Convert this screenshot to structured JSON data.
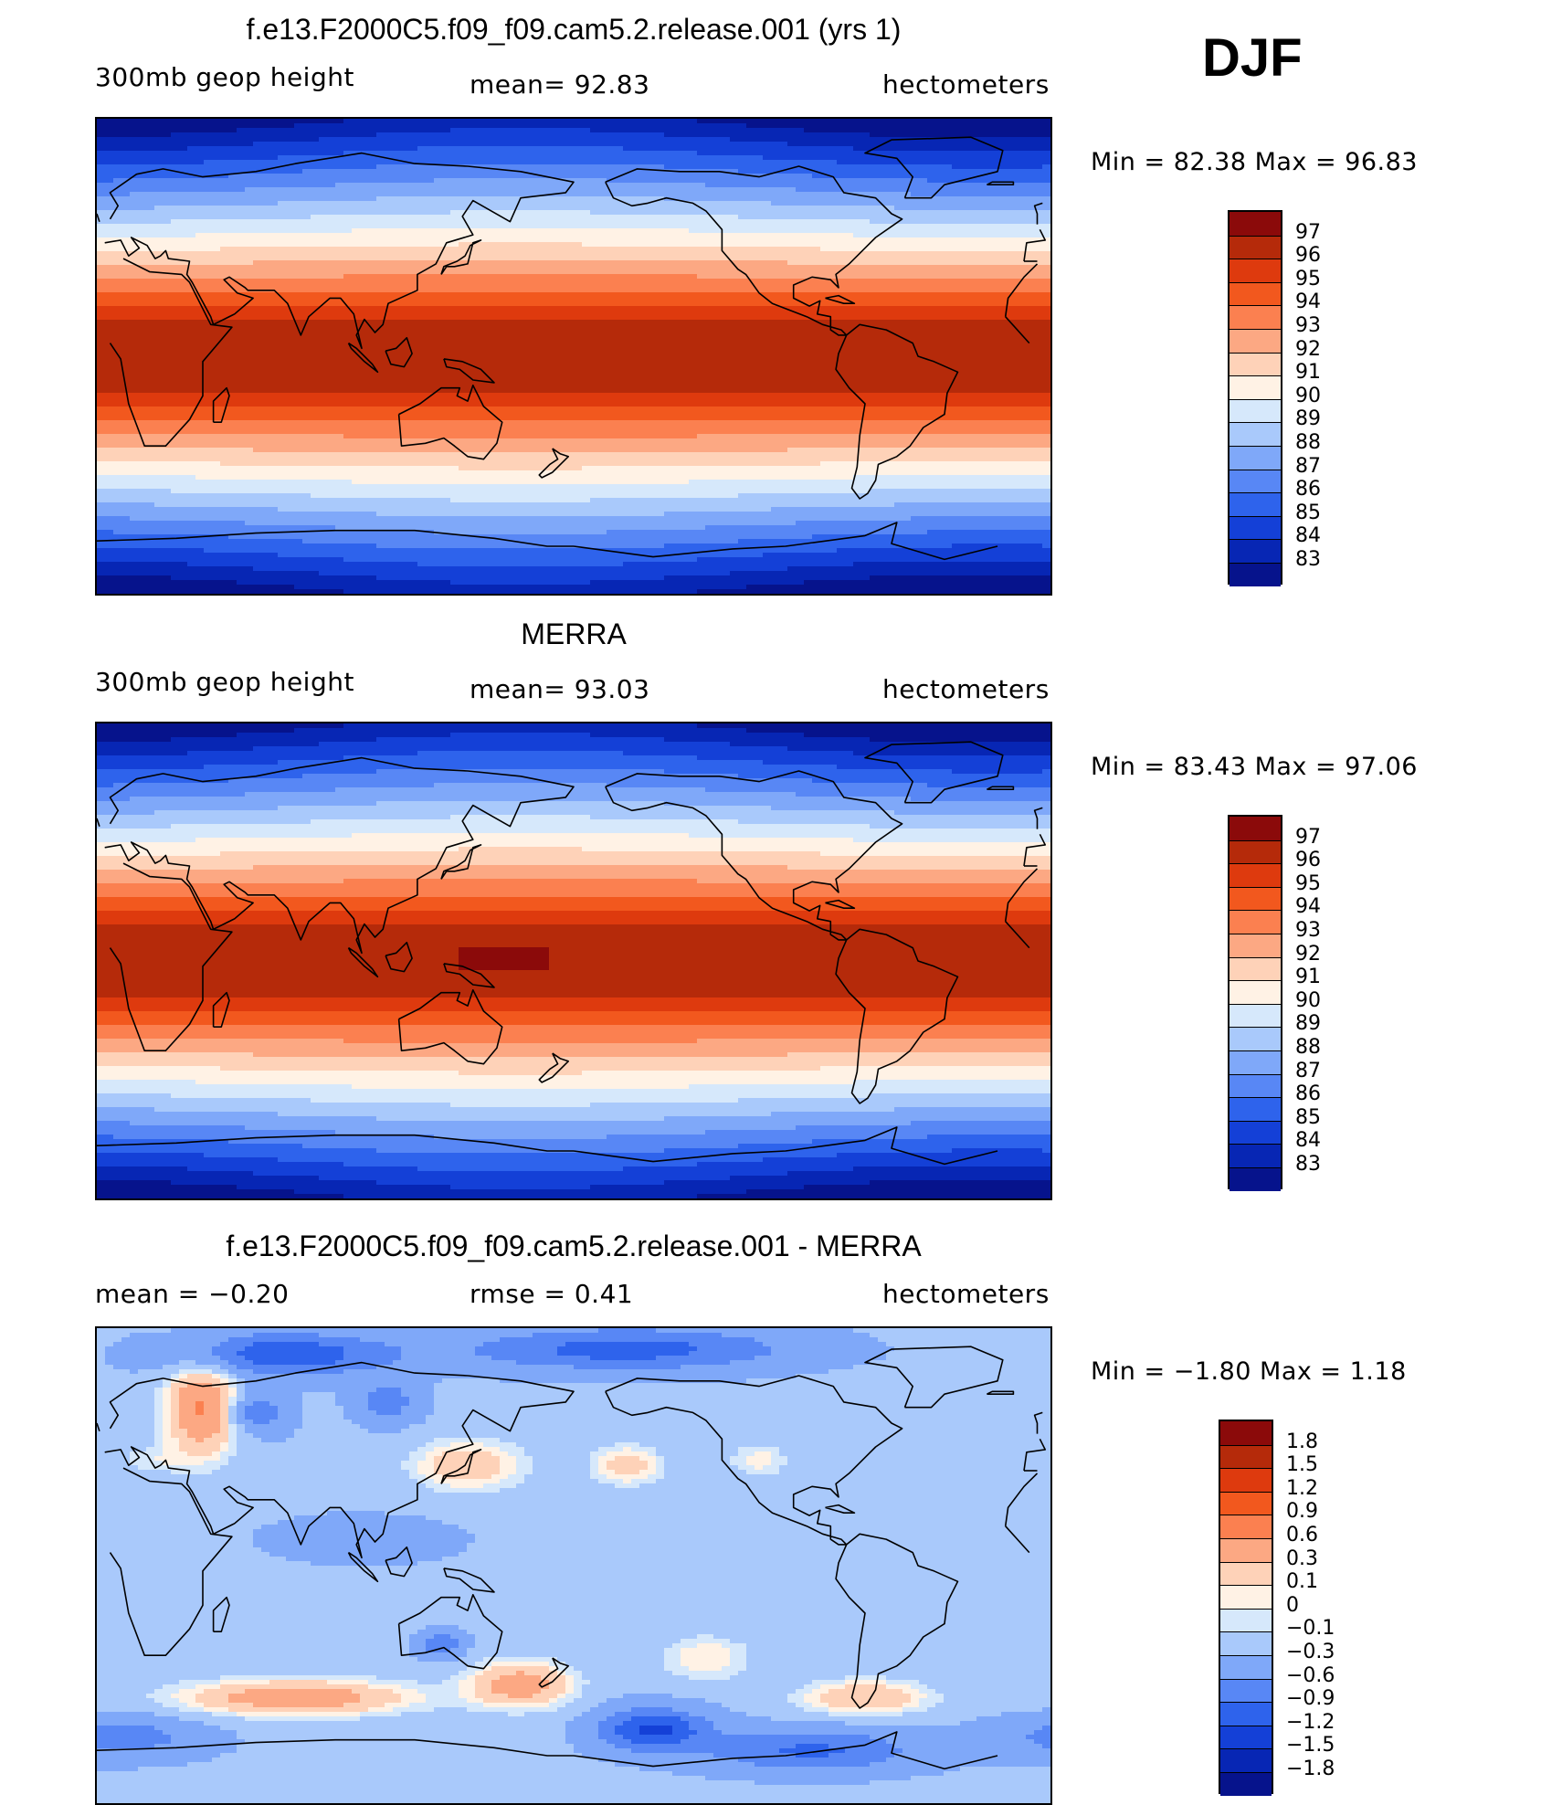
{
  "season": "DJF",
  "panels": [
    {
      "title": "f.e13.F2000C5.f09_f09.cam5.2.release.001 (yrs 1)",
      "left_label": "300mb  geop  height",
      "center_label": "mean=   92.83",
      "right_label": "hectometers",
      "minmax": "Min  =    82.38  Max  =    96.83",
      "colorbar": {
        "labels": [
          "97",
          "96",
          "95",
          "94",
          "93",
          "92",
          "91",
          "90",
          "89",
          "88",
          "87",
          "86",
          "85",
          "84",
          "83"
        ],
        "colors": [
          "#8b0a0a",
          "#b52a0a",
          "#de3a0e",
          "#f2581e",
          "#fb8050",
          "#fca883",
          "#fed2b8",
          "#fff2e5",
          "#d6e8fb",
          "#a9c9fb",
          "#7fa8f9",
          "#5887f5",
          "#2e63ec",
          "#1440d7",
          "#0726b4",
          "#06138c"
        ]
      },
      "field": "mean"
    },
    {
      "title": "MERRA",
      "left_label": "300mb  geop  height",
      "center_label": "mean=   93.03",
      "right_label": "hectometers",
      "minmax": "Min  =    83.43  Max  =    97.06",
      "colorbar": {
        "labels": [
          "97",
          "96",
          "95",
          "94",
          "93",
          "92",
          "91",
          "90",
          "89",
          "88",
          "87",
          "86",
          "85",
          "84",
          "83"
        ],
        "colors": [
          "#8b0a0a",
          "#b52a0a",
          "#de3a0e",
          "#f2581e",
          "#fb8050",
          "#fca883",
          "#fed2b8",
          "#fff2e5",
          "#d6e8fb",
          "#a9c9fb",
          "#7fa8f9",
          "#5887f5",
          "#2e63ec",
          "#1440d7",
          "#0726b4",
          "#06138c"
        ]
      },
      "field": "mean"
    },
    {
      "title": "f.e13.F2000C5.f09_f09.cam5.2.release.001 - MERRA",
      "left_label": "mean  =    −0.20",
      "center_label": "rmse  =     0.41",
      "right_label": "hectometers",
      "minmax": "Min  =    −1.80  Max  =      1.18",
      "colorbar": {
        "labels": [
          "1.8",
          "1.5",
          "1.2",
          "0.9",
          "0.6",
          "0.3",
          "0.1",
          "0",
          "−0.1",
          "−0.3",
          "−0.6",
          "−0.9",
          "−1.2",
          "−1.5",
          "−1.8"
        ],
        "colors": [
          "#8b0a0a",
          "#b52a0a",
          "#de3a0e",
          "#f2581e",
          "#fb8050",
          "#fca883",
          "#fed2b8",
          "#fff2e5",
          "#d6e8fb",
          "#a9c9fb",
          "#7fa8f9",
          "#5887f5",
          "#2e63ec",
          "#1440d7",
          "#0726b4",
          "#06138c"
        ]
      },
      "field": "diff"
    }
  ]
}
